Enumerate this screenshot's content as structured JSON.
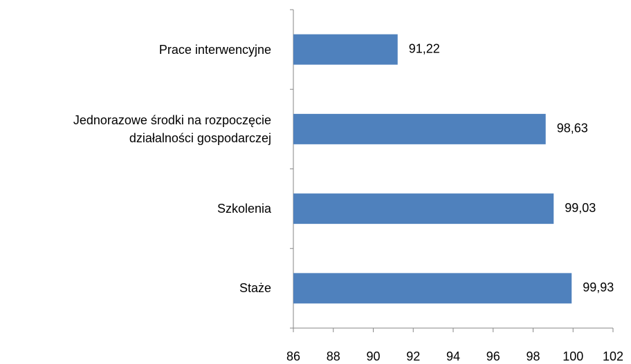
{
  "chart_data": {
    "type": "barh",
    "categories": [
      "Prace interwencyjne",
      "Jednorazowe środki na rozpoczęcie\ndziałalności gospodarczej",
      "Szkolenia",
      "Staże"
    ],
    "values": [
      91.22,
      98.63,
      99.03,
      99.93
    ],
    "value_labels": [
      "91,22",
      "98,63",
      "99,03",
      "99,93"
    ],
    "color": "#4f81bd",
    "xlim": [
      86,
      102
    ],
    "xticks": [
      86,
      88,
      90,
      92,
      94,
      96,
      98,
      100,
      102
    ],
    "grid": false
  }
}
